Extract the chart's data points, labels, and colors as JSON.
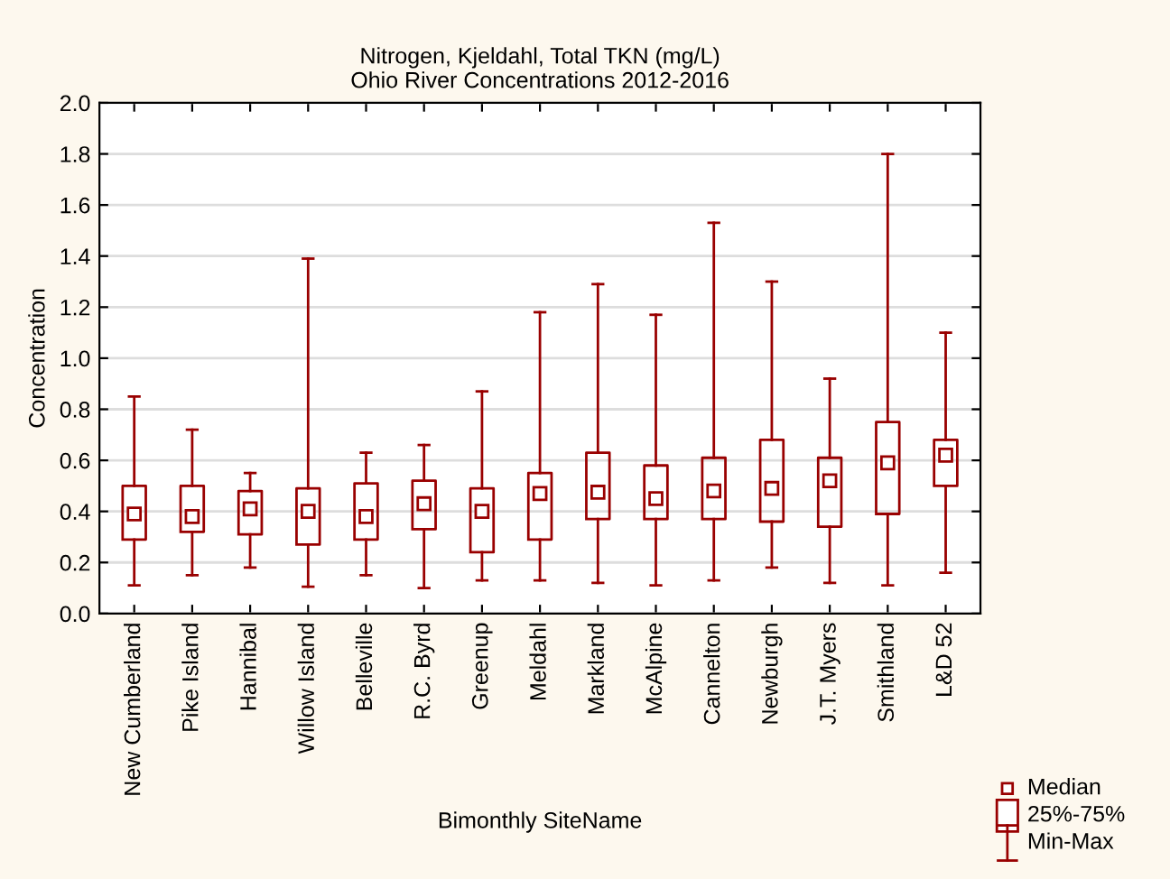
{
  "chart_data": {
    "type": "box",
    "title": "Nitrogen, Kjeldahl, Total TKN (mg/L)",
    "subtitle": "Ohio River Concentrations 2012-2016",
    "xlabel": "Bimonthly SiteName",
    "ylabel": "Concentration",
    "categories": [
      "New Cumberland",
      "Pike Island",
      "Hannibal",
      "Willow Island",
      "Belleville",
      "R.C. Byrd",
      "Greenup",
      "Meldahl",
      "Markland",
      "McAlpine",
      "Cannelton",
      "Newburgh",
      "J.T. Myers",
      "Smithland",
      "L&D 52"
    ],
    "boxes": [
      {
        "low": 0.11,
        "q1": 0.29,
        "median": 0.39,
        "q3": 0.5,
        "high": 0.85
      },
      {
        "low": 0.15,
        "q1": 0.32,
        "median": 0.38,
        "q3": 0.5,
        "high": 0.72
      },
      {
        "low": 0.18,
        "q1": 0.31,
        "median": 0.41,
        "q3": 0.48,
        "high": 0.55
      },
      {
        "low": 0.105,
        "q1": 0.27,
        "median": 0.4,
        "q3": 0.49,
        "high": 1.39
      },
      {
        "low": 0.15,
        "q1": 0.29,
        "median": 0.38,
        "q3": 0.51,
        "high": 0.63
      },
      {
        "low": 0.1,
        "q1": 0.33,
        "median": 0.43,
        "q3": 0.52,
        "high": 0.66
      },
      {
        "low": 0.13,
        "q1": 0.24,
        "median": 0.4,
        "q3": 0.49,
        "high": 0.87
      },
      {
        "low": 0.13,
        "q1": 0.29,
        "median": 0.47,
        "q3": 0.55,
        "high": 1.18
      },
      {
        "low": 0.12,
        "q1": 0.37,
        "median": 0.475,
        "q3": 0.63,
        "high": 1.29
      },
      {
        "low": 0.11,
        "q1": 0.37,
        "median": 0.45,
        "q3": 0.58,
        "high": 1.17
      },
      {
        "low": 0.13,
        "q1": 0.37,
        "median": 0.48,
        "q3": 0.61,
        "high": 1.53
      },
      {
        "low": 0.18,
        "q1": 0.36,
        "median": 0.49,
        "q3": 0.68,
        "high": 1.3
      },
      {
        "low": 0.12,
        "q1": 0.34,
        "median": 0.52,
        "q3": 0.61,
        "high": 0.92
      },
      {
        "low": 0.11,
        "q1": 0.39,
        "median": 0.59,
        "q3": 0.75,
        "high": 1.8
      },
      {
        "low": 0.16,
        "q1": 0.5,
        "median": 0.62,
        "q3": 0.68,
        "high": 1.1
      }
    ],
    "color": "#990000",
    "annotations": [
      "Median",
      "25%-75%",
      "Min-Max"
    ],
    "ylim": [
      0,
      2.0
    ],
    "yticks": [
      {
        "value": 0,
        "label": "0.0"
      },
      {
        "value": 0.2,
        "label": "0.2"
      },
      {
        "value": 0.4,
        "label": "0.4"
      },
      {
        "value": 0.6,
        "label": "0.6"
      },
      {
        "value": 0.8,
        "label": "0.8"
      },
      {
        "value": 1.0,
        "label": "1.0"
      },
      {
        "value": 1.2,
        "label": "1.2"
      },
      {
        "value": 1.4,
        "label": "1.4"
      },
      {
        "value": 1.6,
        "label": "1.6"
      },
      {
        "value": 1.8,
        "label": "1.8"
      },
      {
        "value": 2.0,
        "label": "2.0"
      }
    ],
    "grid": "y",
    "marker": "square"
  }
}
